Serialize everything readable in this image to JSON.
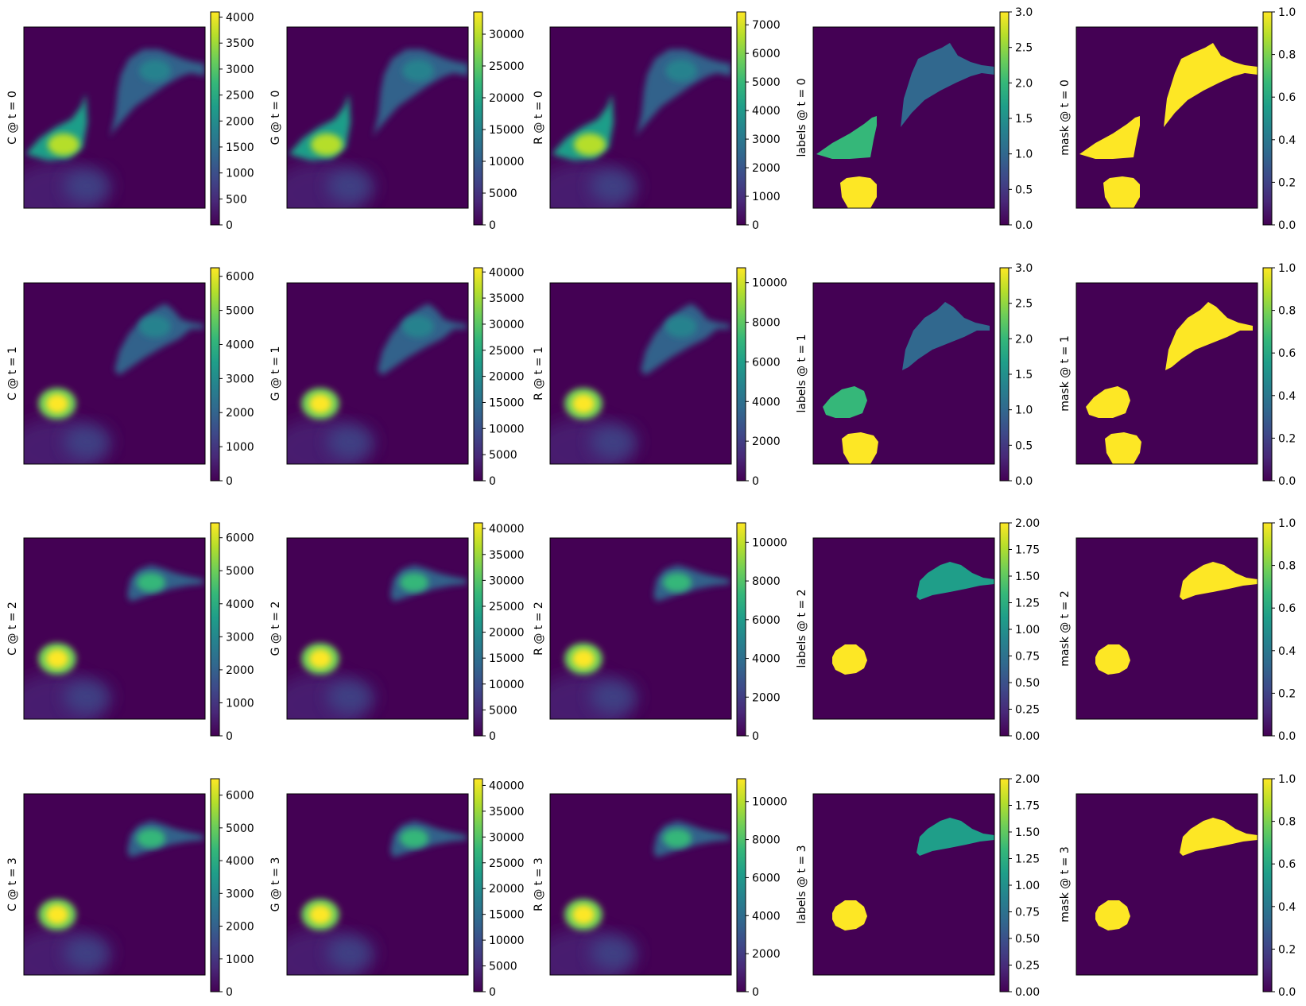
{
  "colors": {
    "viridis": [
      "#440154",
      "#482878",
      "#3e4989",
      "#31688e",
      "#26828e",
      "#1f9e89",
      "#35b779",
      "#6ece58",
      "#b5de2b",
      "#fde725"
    ],
    "background": "#440154",
    "frame": "#000000"
  },
  "chart_data": [
    {
      "type": "heatmap",
      "ylabel": "C @ t = 0",
      "colorbar": {
        "range": [
          0,
          4100
        ],
        "ticks": [
          "0",
          "500",
          "1000",
          "1500",
          "2000",
          "2500",
          "3000",
          "3500",
          "4000"
        ]
      }
    },
    {
      "type": "heatmap",
      "ylabel": "G @ t = 0",
      "colorbar": {
        "range": [
          0,
          33500
        ],
        "ticks": [
          "0",
          "5000",
          "10000",
          "15000",
          "20000",
          "25000",
          "30000"
        ]
      }
    },
    {
      "type": "heatmap",
      "ylabel": "R @ t = 0",
      "colorbar": {
        "range": [
          0,
          7450
        ],
        "ticks": [
          "0",
          "1000",
          "2000",
          "3000",
          "4000",
          "5000",
          "6000",
          "7000"
        ]
      }
    },
    {
      "type": "heatmap",
      "ylabel": "labels @ t = 0",
      "colorbar": {
        "range": [
          0,
          3
        ],
        "ticks": [
          "0.0",
          "0.5",
          "1.0",
          "1.5",
          "2.0",
          "2.5",
          "3.0"
        ]
      }
    },
    {
      "type": "heatmap",
      "ylabel": "mask @ t = 0",
      "colorbar": {
        "range": [
          0,
          1
        ],
        "ticks": [
          "0.0",
          "0.2",
          "0.4",
          "0.6",
          "0.8",
          "1.0"
        ]
      }
    },
    {
      "type": "heatmap",
      "ylabel": "C @ t = 1",
      "colorbar": {
        "range": [
          0,
          6250
        ],
        "ticks": [
          "0",
          "1000",
          "2000",
          "3000",
          "4000",
          "5000",
          "6000"
        ]
      }
    },
    {
      "type": "heatmap",
      "ylabel": "G @ t = 1",
      "colorbar": {
        "range": [
          0,
          40800
        ],
        "ticks": [
          "0",
          "5000",
          "10000",
          "15000",
          "20000",
          "25000",
          "30000",
          "35000",
          "40000"
        ]
      }
    },
    {
      "type": "heatmap",
      "ylabel": "R @ t = 1",
      "colorbar": {
        "range": [
          0,
          10750
        ],
        "ticks": [
          "0",
          "2000",
          "4000",
          "6000",
          "8000",
          "10000"
        ]
      }
    },
    {
      "type": "heatmap",
      "ylabel": "labels @ t = 1",
      "colorbar": {
        "range": [
          0,
          3
        ],
        "ticks": [
          "0.0",
          "0.5",
          "1.0",
          "1.5",
          "2.0",
          "2.5",
          "3.0"
        ]
      }
    },
    {
      "type": "heatmap",
      "ylabel": "mask @ t = 1",
      "colorbar": {
        "range": [
          0,
          1
        ],
        "ticks": [
          "0.0",
          "0.2",
          "0.4",
          "0.6",
          "0.8",
          "1.0"
        ]
      }
    },
    {
      "type": "heatmap",
      "ylabel": "C @ t = 2",
      "colorbar": {
        "range": [
          0,
          6450
        ],
        "ticks": [
          "0",
          "1000",
          "2000",
          "3000",
          "4000",
          "5000",
          "6000"
        ]
      }
    },
    {
      "type": "heatmap",
      "ylabel": "G @ t = 2",
      "colorbar": {
        "range": [
          0,
          41100
        ],
        "ticks": [
          "0",
          "5000",
          "10000",
          "15000",
          "20000",
          "25000",
          "30000",
          "35000",
          "40000"
        ]
      }
    },
    {
      "type": "heatmap",
      "ylabel": "R @ t = 2",
      "colorbar": {
        "range": [
          0,
          11000
        ],
        "ticks": [
          "0",
          "2000",
          "4000",
          "6000",
          "8000",
          "10000"
        ]
      }
    },
    {
      "type": "heatmap",
      "ylabel": "labels @ t = 2",
      "colorbar": {
        "range": [
          0,
          2
        ],
        "ticks": [
          "0.00",
          "0.25",
          "0.50",
          "0.75",
          "1.00",
          "1.25",
          "1.50",
          "1.75",
          "2.00"
        ]
      }
    },
    {
      "type": "heatmap",
      "ylabel": "mask @ t = 2",
      "colorbar": {
        "range": [
          0,
          1
        ],
        "ticks": [
          "0.0",
          "0.2",
          "0.4",
          "0.6",
          "0.8",
          "1.0"
        ]
      }
    },
    {
      "type": "heatmap",
      "ylabel": "C @ t = 3",
      "colorbar": {
        "range": [
          0,
          6500
        ],
        "ticks": [
          "0",
          "1000",
          "2000",
          "3000",
          "4000",
          "5000",
          "6000"
        ]
      }
    },
    {
      "type": "heatmap",
      "ylabel": "G @ t = 3",
      "colorbar": {
        "range": [
          0,
          41300
        ],
        "ticks": [
          "0",
          "5000",
          "10000",
          "15000",
          "20000",
          "25000",
          "30000",
          "35000",
          "40000"
        ]
      }
    },
    {
      "type": "heatmap",
      "ylabel": "R @ t = 3",
      "colorbar": {
        "range": [
          0,
          11200
        ],
        "ticks": [
          "0",
          "2000",
          "4000",
          "6000",
          "8000",
          "10000"
        ]
      }
    },
    {
      "type": "heatmap",
      "ylabel": "labels @ t = 3",
      "colorbar": {
        "range": [
          0,
          2
        ],
        "ticks": [
          "0.00",
          "0.25",
          "0.50",
          "0.75",
          "1.00",
          "1.25",
          "1.50",
          "1.75",
          "2.00"
        ]
      }
    },
    {
      "type": "heatmap",
      "ylabel": "mask @ t = 3",
      "colorbar": {
        "range": [
          0,
          1
        ],
        "ticks": [
          "0.0",
          "0.2",
          "0.4",
          "0.6",
          "0.8",
          "1.0"
        ]
      }
    }
  ]
}
